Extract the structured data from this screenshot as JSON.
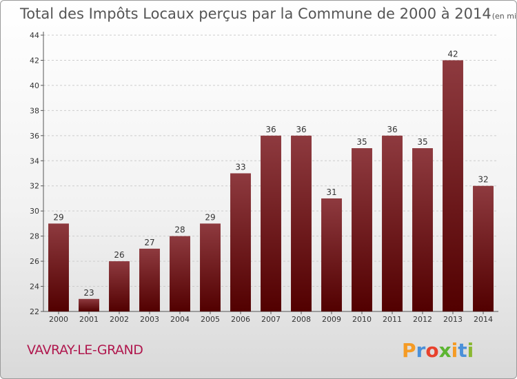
{
  "chart_data": {
    "type": "bar",
    "title": "Total des Impôts Locaux perçus par la Commune de 2000 à 2014",
    "unit": "(en milliers d'€)",
    "categories": [
      "2000",
      "2001",
      "2002",
      "2003",
      "2004",
      "2005",
      "2006",
      "2007",
      "2008",
      "2009",
      "2010",
      "2011",
      "2012",
      "2013",
      "2014"
    ],
    "values": [
      29,
      23,
      26,
      27,
      28,
      29,
      33,
      36,
      36,
      31,
      35,
      36,
      35,
      42,
      32
    ],
    "ylim": [
      22,
      44
    ],
    "yticks": [
      22,
      24,
      26,
      28,
      30,
      32,
      34,
      36,
      38,
      40,
      42,
      44
    ],
    "xlabel": "",
    "ylabel": "",
    "bar_color_top": "#8e3a3f",
    "bar_color_bottom": "#520000"
  },
  "commune": "VAVRAY-LE-GRAND",
  "brand": {
    "letters": [
      "P",
      "r",
      "o",
      "x",
      "i",
      "t",
      "i"
    ],
    "colors": [
      "#f59b24",
      "#4a90d9",
      "#e8412c",
      "#5cb531",
      "#f59b24",
      "#4a90d9",
      "#8ab832"
    ]
  }
}
